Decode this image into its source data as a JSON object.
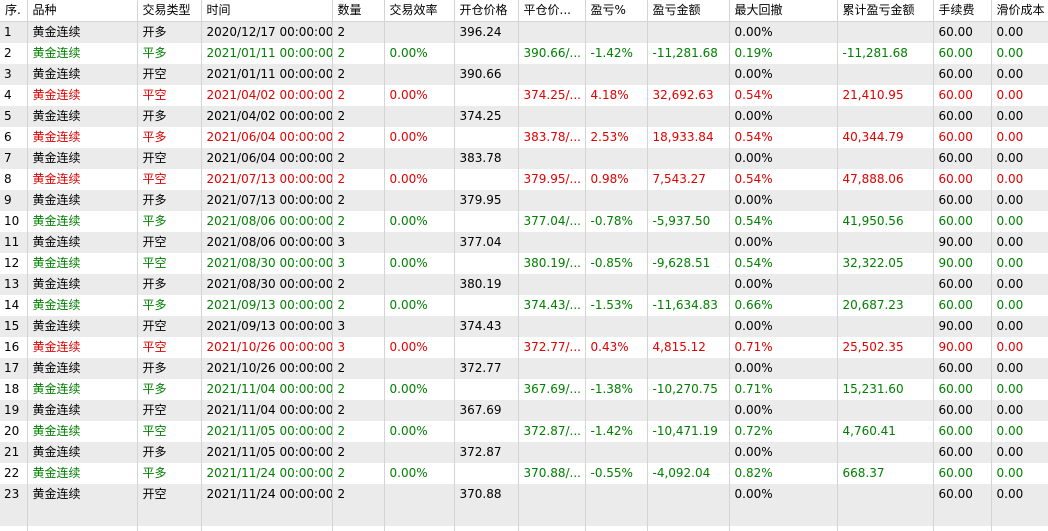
{
  "columns": [
    "序.",
    "品种",
    "交易类型",
    "时间",
    "数量",
    "交易效率",
    "开仓价格",
    "平仓价...",
    "盈亏%",
    "盈亏金额",
    "最大回撤",
    "累计盈亏金额",
    "手续费",
    "滑价成本"
  ],
  "colors": {
    "red": "#e00000",
    "green": "#008000",
    "black": "#000000"
  },
  "rows": [
    {
      "seq": "1",
      "symbol": "黄金连续",
      "type": "开多",
      "time": "2020/12/17 00:00:00",
      "qty": "2",
      "eff": "",
      "open": "396.24",
      "close": "",
      "pnl_pct": "",
      "pnl": "",
      "drawdown": "0.00%",
      "cum": "",
      "fee": "60.00",
      "slip": "0.00",
      "color": "black"
    },
    {
      "seq": "2",
      "symbol": "黄金连续",
      "type": "平多",
      "time": "2021/01/11 00:00:00",
      "qty": "2",
      "eff": "0.00%",
      "open": "",
      "close": "390.66/...",
      "pnl_pct": "-1.42%",
      "pnl": "-11,281.68",
      "drawdown": "0.19%",
      "cum": "-11,281.68",
      "fee": "60.00",
      "slip": "0.00",
      "color": "green"
    },
    {
      "seq": "3",
      "symbol": "黄金连续",
      "type": "开空",
      "time": "2021/01/11 00:00:00",
      "qty": "2",
      "eff": "",
      "open": "390.66",
      "close": "",
      "pnl_pct": "",
      "pnl": "",
      "drawdown": "0.00%",
      "cum": "",
      "fee": "60.00",
      "slip": "0.00",
      "color": "black"
    },
    {
      "seq": "4",
      "symbol": "黄金连续",
      "type": "平空",
      "time": "2021/04/02 00:00:00",
      "qty": "2",
      "eff": "0.00%",
      "open": "",
      "close": "374.25/...",
      "pnl_pct": "4.18%",
      "pnl": "32,692.63",
      "drawdown": "0.54%",
      "cum": "21,410.95",
      "fee": "60.00",
      "slip": "0.00",
      "color": "red"
    },
    {
      "seq": "5",
      "symbol": "黄金连续",
      "type": "开多",
      "time": "2021/04/02 00:00:00",
      "qty": "2",
      "eff": "",
      "open": "374.25",
      "close": "",
      "pnl_pct": "",
      "pnl": "",
      "drawdown": "0.00%",
      "cum": "",
      "fee": "60.00",
      "slip": "0.00",
      "color": "black"
    },
    {
      "seq": "6",
      "symbol": "黄金连续",
      "type": "平多",
      "time": "2021/06/04 00:00:00",
      "qty": "2",
      "eff": "0.00%",
      "open": "",
      "close": "383.78/...",
      "pnl_pct": "2.53%",
      "pnl": "18,933.84",
      "drawdown": "0.54%",
      "cum": "40,344.79",
      "fee": "60.00",
      "slip": "0.00",
      "color": "red"
    },
    {
      "seq": "7",
      "symbol": "黄金连续",
      "type": "开空",
      "time": "2021/06/04 00:00:00",
      "qty": "2",
      "eff": "",
      "open": "383.78",
      "close": "",
      "pnl_pct": "",
      "pnl": "",
      "drawdown": "0.00%",
      "cum": "",
      "fee": "60.00",
      "slip": "0.00",
      "color": "black"
    },
    {
      "seq": "8",
      "symbol": "黄金连续",
      "type": "平空",
      "time": "2021/07/13 00:00:00",
      "qty": "2",
      "eff": "0.00%",
      "open": "",
      "close": "379.95/...",
      "pnl_pct": "0.98%",
      "pnl": "7,543.27",
      "drawdown": "0.54%",
      "cum": "47,888.06",
      "fee": "60.00",
      "slip": "0.00",
      "color": "red"
    },
    {
      "seq": "9",
      "symbol": "黄金连续",
      "type": "开多",
      "time": "2021/07/13 00:00:00",
      "qty": "2",
      "eff": "",
      "open": "379.95",
      "close": "",
      "pnl_pct": "",
      "pnl": "",
      "drawdown": "0.00%",
      "cum": "",
      "fee": "60.00",
      "slip": "0.00",
      "color": "black"
    },
    {
      "seq": "10",
      "symbol": "黄金连续",
      "type": "平多",
      "time": "2021/08/06 00:00:00",
      "qty": "2",
      "eff": "0.00%",
      "open": "",
      "close": "377.04/...",
      "pnl_pct": "-0.78%",
      "pnl": "-5,937.50",
      "drawdown": "0.54%",
      "cum": "41,950.56",
      "fee": "60.00",
      "slip": "0.00",
      "color": "green"
    },
    {
      "seq": "11",
      "symbol": "黄金连续",
      "type": "开空",
      "time": "2021/08/06 00:00:00",
      "qty": "3",
      "eff": "",
      "open": "377.04",
      "close": "",
      "pnl_pct": "",
      "pnl": "",
      "drawdown": "0.00%",
      "cum": "",
      "fee": "90.00",
      "slip": "0.00",
      "color": "black"
    },
    {
      "seq": "12",
      "symbol": "黄金连续",
      "type": "平空",
      "time": "2021/08/30 00:00:00",
      "qty": "3",
      "eff": "0.00%",
      "open": "",
      "close": "380.19/...",
      "pnl_pct": "-0.85%",
      "pnl": "-9,628.51",
      "drawdown": "0.54%",
      "cum": "32,322.05",
      "fee": "90.00",
      "slip": "0.00",
      "color": "green"
    },
    {
      "seq": "13",
      "symbol": "黄金连续",
      "type": "开多",
      "time": "2021/08/30 00:00:00",
      "qty": "2",
      "eff": "",
      "open": "380.19",
      "close": "",
      "pnl_pct": "",
      "pnl": "",
      "drawdown": "0.00%",
      "cum": "",
      "fee": "60.00",
      "slip": "0.00",
      "color": "black"
    },
    {
      "seq": "14",
      "symbol": "黄金连续",
      "type": "平多",
      "time": "2021/09/13 00:00:00",
      "qty": "2",
      "eff": "0.00%",
      "open": "",
      "close": "374.43/...",
      "pnl_pct": "-1.53%",
      "pnl": "-11,634.83",
      "drawdown": "0.66%",
      "cum": "20,687.23",
      "fee": "60.00",
      "slip": "0.00",
      "color": "green"
    },
    {
      "seq": "15",
      "symbol": "黄金连续",
      "type": "开空",
      "time": "2021/09/13 00:00:00",
      "qty": "3",
      "eff": "",
      "open": "374.43",
      "close": "",
      "pnl_pct": "",
      "pnl": "",
      "drawdown": "0.00%",
      "cum": "",
      "fee": "90.00",
      "slip": "0.00",
      "color": "black"
    },
    {
      "seq": "16",
      "symbol": "黄金连续",
      "type": "平空",
      "time": "2021/10/26 00:00:00",
      "qty": "3",
      "eff": "0.00%",
      "open": "",
      "close": "372.77/...",
      "pnl_pct": "0.43%",
      "pnl": "4,815.12",
      "drawdown": "0.71%",
      "cum": "25,502.35",
      "fee": "90.00",
      "slip": "0.00",
      "color": "red"
    },
    {
      "seq": "17",
      "symbol": "黄金连续",
      "type": "开多",
      "time": "2021/10/26 00:00:00",
      "qty": "2",
      "eff": "",
      "open": "372.77",
      "close": "",
      "pnl_pct": "",
      "pnl": "",
      "drawdown": "0.00%",
      "cum": "",
      "fee": "60.00",
      "slip": "0.00",
      "color": "black"
    },
    {
      "seq": "18",
      "symbol": "黄金连续",
      "type": "平多",
      "time": "2021/11/04 00:00:00",
      "qty": "2",
      "eff": "0.00%",
      "open": "",
      "close": "367.69/...",
      "pnl_pct": "-1.38%",
      "pnl": "-10,270.75",
      "drawdown": "0.71%",
      "cum": "15,231.60",
      "fee": "60.00",
      "slip": "0.00",
      "color": "green"
    },
    {
      "seq": "19",
      "symbol": "黄金连续",
      "type": "开空",
      "time": "2021/11/04 00:00:00",
      "qty": "2",
      "eff": "",
      "open": "367.69",
      "close": "",
      "pnl_pct": "",
      "pnl": "",
      "drawdown": "0.00%",
      "cum": "",
      "fee": "60.00",
      "slip": "0.00",
      "color": "black"
    },
    {
      "seq": "20",
      "symbol": "黄金连续",
      "type": "平空",
      "time": "2021/11/05 00:00:00",
      "qty": "2",
      "eff": "0.00%",
      "open": "",
      "close": "372.87/...",
      "pnl_pct": "-1.42%",
      "pnl": "-10,471.19",
      "drawdown": "0.72%",
      "cum": "4,760.41",
      "fee": "60.00",
      "slip": "0.00",
      "color": "green"
    },
    {
      "seq": "21",
      "symbol": "黄金连续",
      "type": "开多",
      "time": "2021/11/05 00:00:00",
      "qty": "2",
      "eff": "",
      "open": "372.87",
      "close": "",
      "pnl_pct": "",
      "pnl": "",
      "drawdown": "0.00%",
      "cum": "",
      "fee": "60.00",
      "slip": "0.00",
      "color": "black"
    },
    {
      "seq": "22",
      "symbol": "黄金连续",
      "type": "平多",
      "time": "2021/11/24 00:00:00",
      "qty": "2",
      "eff": "0.00%",
      "open": "",
      "close": "370.88/...",
      "pnl_pct": "-0.55%",
      "pnl": "-4,092.04",
      "drawdown": "0.82%",
      "cum": "668.37",
      "fee": "60.00",
      "slip": "0.00",
      "color": "green"
    },
    {
      "seq": "23",
      "symbol": "黄金连续",
      "type": "开空",
      "time": "2021/11/24 00:00:00",
      "qty": "2",
      "eff": "",
      "open": "370.88",
      "close": "",
      "pnl_pct": "",
      "pnl": "",
      "drawdown": "0.00%",
      "cum": "",
      "fee": "60.00",
      "slip": "0.00",
      "color": "black"
    }
  ]
}
